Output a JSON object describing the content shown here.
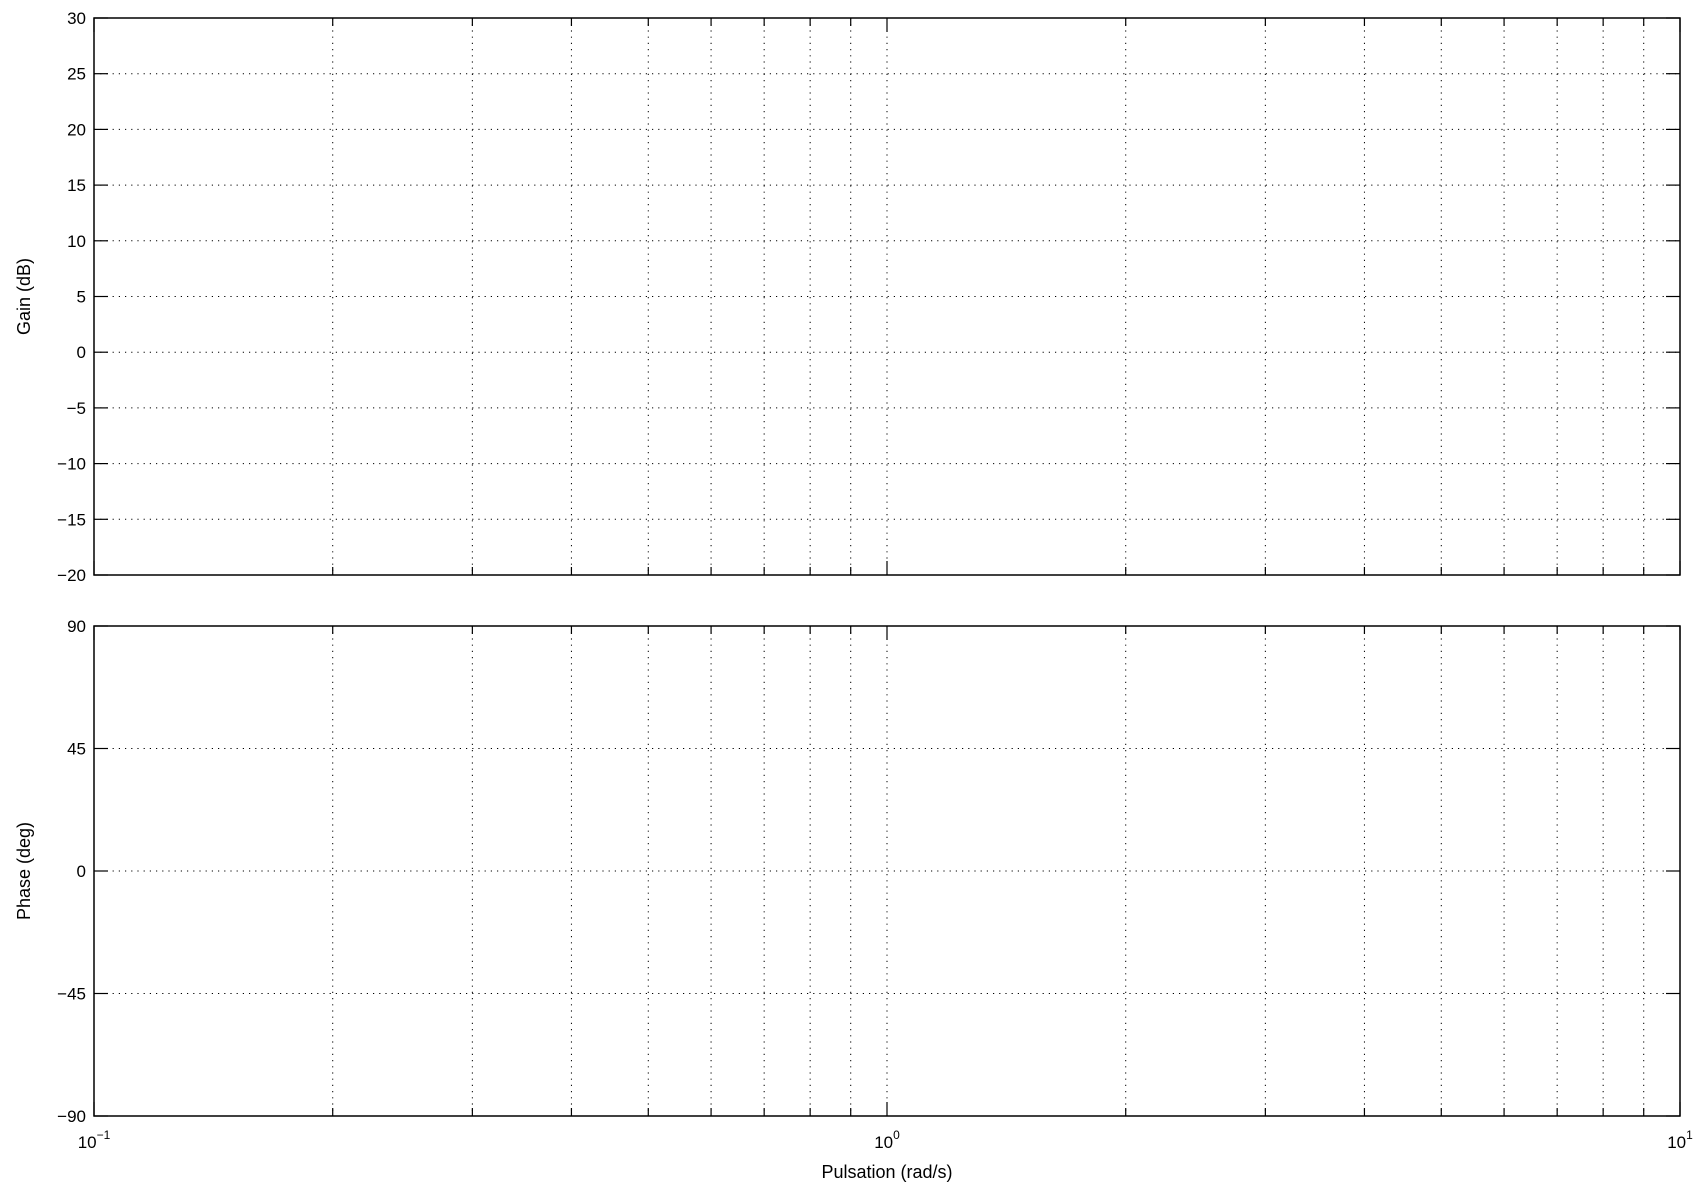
{
  "chart_data": [
    {
      "type": "line",
      "panel": "gain",
      "xscale": "log",
      "xlim": [
        0.1,
        10
      ],
      "ylim": [
        -20,
        30
      ],
      "ylabel": "Gain (dB)",
      "yticks": [
        30,
        25,
        20,
        15,
        10,
        5,
        0,
        -5,
        -10,
        -15,
        -20
      ],
      "ytick_labels": [
        "30",
        "25",
        "20",
        "15",
        "10",
        "5",
        "0",
        "−5",
        "−10",
        "−15",
        "−20"
      ],
      "grid": true,
      "series": []
    },
    {
      "type": "line",
      "panel": "phase",
      "xscale": "log",
      "xlim": [
        0.1,
        10
      ],
      "ylim": [
        -90,
        90
      ],
      "ylabel": "Phase (deg)",
      "xlabel": "Pulsation  (rad/s)",
      "yticks": [
        90,
        45,
        0,
        -45,
        -90
      ],
      "ytick_labels": [
        "90",
        "45",
        "0",
        "−45",
        "−90"
      ],
      "xticks": [
        0.1,
        1,
        10
      ],
      "xtick_labels": [
        {
          "base": "10",
          "exp": "−1"
        },
        {
          "base": "10",
          "exp": "0"
        },
        {
          "base": "10",
          "exp": "1"
        }
      ],
      "grid": true,
      "series": []
    }
  ],
  "colors": {
    "axis": "#000000",
    "grid": "#000000",
    "background": "#ffffff"
  }
}
